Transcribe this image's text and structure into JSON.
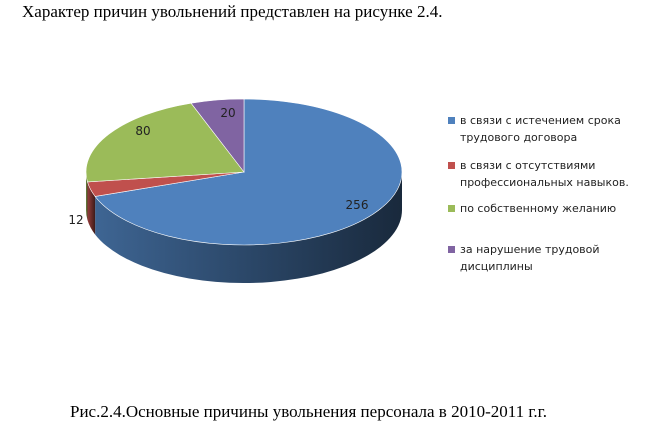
{
  "intro_text": "Характер причин увольнений представлен на рисунке 2.4.",
  "caption": "Рис.2.4.Основные причины увольнения персонала в 2010-2011 г.г.",
  "chart_data": {
    "type": "pie",
    "title": "",
    "three_d": true,
    "legend_position": "right",
    "slices": [
      {
        "label": "в связи с истечением срока трудового договора",
        "value": 256,
        "color": "#4F81BD"
      },
      {
        "label": "в связи с отсутствиями профессиональных навыков.",
        "value": 12,
        "color": "#C0504D"
      },
      {
        "label": "по собственному желанию",
        "value": 80,
        "color": "#9BBB59"
      },
      {
        "label": "за нарушение трудовой дисциплины",
        "value": 20,
        "color": "#8064A2"
      }
    ]
  }
}
